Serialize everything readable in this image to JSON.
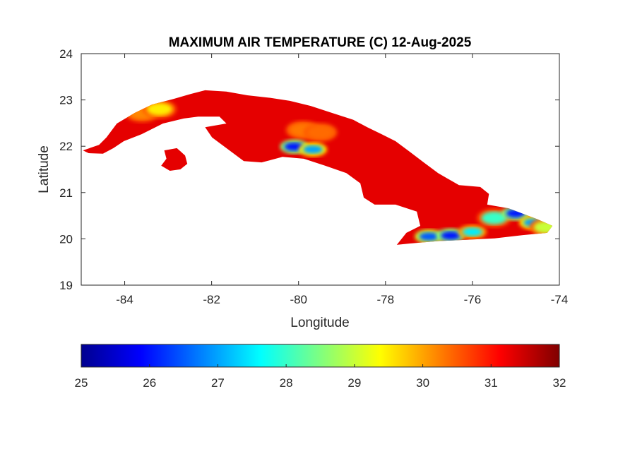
{
  "chart_data": {
    "type": "heatmap",
    "title": "MAXIMUM AIR TEMPERATURE (C) 12-Aug-2025",
    "xlabel": "Longitude",
    "ylabel": "Latitude",
    "xlim": [
      -85,
      -74
    ],
    "ylim": [
      19,
      24
    ],
    "xticks": [
      "-84",
      "-82",
      "-80",
      "-78",
      "-76",
      "-74"
    ],
    "yticks": [
      "19",
      "20",
      "21",
      "22",
      "23",
      "24"
    ],
    "colormap": "jet",
    "clim": [
      25,
      32
    ],
    "colorbar_ticks": [
      "25",
      "26",
      "27",
      "28",
      "29",
      "30",
      "31",
      "32"
    ],
    "colorbar_location": "bottom",
    "grid": false,
    "background_value": 31.3,
    "land_polygons": [
      [
        [
          -84.96,
          21.91
        ],
        [
          -84.59,
          22.03
        ],
        [
          -84.42,
          22.19
        ],
        [
          -84.18,
          22.49
        ],
        [
          -83.77,
          22.72
        ],
        [
          -83.37,
          22.9
        ],
        [
          -82.88,
          23.02
        ],
        [
          -82.48,
          23.13
        ],
        [
          -82.15,
          23.21
        ],
        [
          -81.66,
          23.18
        ],
        [
          -81.18,
          23.1
        ],
        [
          -80.69,
          23.05
        ],
        [
          -80.2,
          22.98
        ],
        [
          -79.72,
          22.87
        ],
        [
          -79.23,
          22.72
        ],
        [
          -78.74,
          22.57
        ],
        [
          -78.42,
          22.41
        ],
        [
          -78.09,
          22.26
        ],
        [
          -77.77,
          22.11
        ],
        [
          -77.44,
          21.88
        ],
        [
          -77.12,
          21.65
        ],
        [
          -76.79,
          21.42
        ],
        [
          -76.31,
          21.16
        ],
        [
          -75.82,
          21.12
        ],
        [
          -75.62,
          20.97
        ],
        [
          -75.66,
          20.74
        ],
        [
          -75.17,
          20.66
        ],
        [
          -74.52,
          20.43
        ],
        [
          -74.16,
          20.28
        ],
        [
          -74.28,
          20.13
        ],
        [
          -74.84,
          20.08
        ],
        [
          -75.49,
          20.01
        ],
        [
          -76.14,
          19.98
        ],
        [
          -76.79,
          19.95
        ],
        [
          -77.44,
          19.9
        ],
        [
          -77.74,
          19.87
        ],
        [
          -77.52,
          20.13
        ],
        [
          -77.2,
          20.28
        ],
        [
          -77.28,
          20.59
        ],
        [
          -77.77,
          20.74
        ],
        [
          -78.25,
          20.74
        ],
        [
          -78.5,
          20.89
        ],
        [
          -78.58,
          21.2
        ],
        [
          -78.9,
          21.42
        ],
        [
          -79.39,
          21.58
        ],
        [
          -79.88,
          21.73
        ],
        [
          -80.37,
          21.77
        ],
        [
          -80.85,
          21.65
        ],
        [
          -81.26,
          21.68
        ],
        [
          -81.66,
          21.96
        ],
        [
          -81.99,
          22.19
        ],
        [
          -82.15,
          22.41
        ],
        [
          -81.66,
          22.49
        ],
        [
          -81.82,
          22.64
        ],
        [
          -82.31,
          22.64
        ],
        [
          -82.64,
          22.6
        ],
        [
          -83.12,
          22.49
        ],
        [
          -83.61,
          22.26
        ],
        [
          -84.02,
          22.11
        ],
        [
          -84.26,
          21.96
        ],
        [
          -84.5,
          21.84
        ],
        [
          -84.83,
          21.85
        ]
      ],
      [
        [
          -83.09,
          21.91
        ],
        [
          -82.8,
          21.96
        ],
        [
          -82.61,
          21.8
        ],
        [
          -82.56,
          21.62
        ],
        [
          -82.72,
          21.5
        ],
        [
          -82.96,
          21.47
        ],
        [
          -83.16,
          21.58
        ],
        [
          -83.04,
          21.73
        ]
      ]
    ],
    "cool_areas": [
      {
        "lon": -83.6,
        "lat": 22.72,
        "value": 30.2
      },
      {
        "lon": -83.2,
        "lat": 22.8,
        "value": 29.5
      },
      {
        "lon": -79.9,
        "lat": 22.35,
        "value": 30.3
      },
      {
        "lon": -79.5,
        "lat": 22.3,
        "value": 30.4
      },
      {
        "lon": -80.1,
        "lat": 21.99,
        "value": 26.0
      },
      {
        "lon": -79.67,
        "lat": 21.93,
        "value": 27.0
      },
      {
        "lon": -77.0,
        "lat": 20.05,
        "value": 26.5
      },
      {
        "lon": -76.5,
        "lat": 20.07,
        "value": 26.0
      },
      {
        "lon": -76.0,
        "lat": 20.15,
        "value": 27.5
      },
      {
        "lon": -75.5,
        "lat": 20.45,
        "value": 28.0
      },
      {
        "lon": -75.0,
        "lat": 20.55,
        "value": 26.0
      },
      {
        "lon": -74.6,
        "lat": 20.35,
        "value": 27.0
      },
      {
        "lon": -74.3,
        "lat": 20.25,
        "value": 29.0
      }
    ]
  }
}
